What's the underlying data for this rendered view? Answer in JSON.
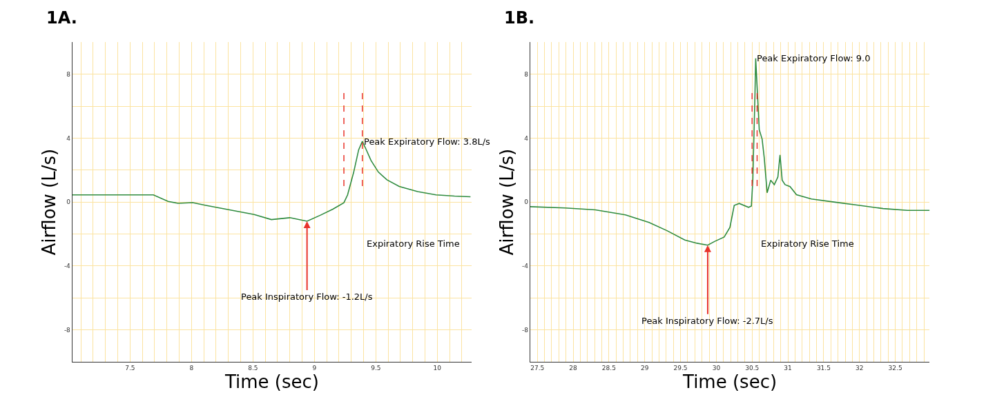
{
  "chart_data": [
    {
      "type": "line",
      "title": "1A.",
      "xlabel": "Time (sec)",
      "ylabel": "Airflow (L/s)",
      "grid": true,
      "line_style": "solid",
      "marker": "none",
      "x": [
        7.03,
        7.69,
        7.81,
        7.89,
        8.01,
        8.11,
        8.31,
        8.51,
        8.65,
        8.8,
        8.94,
        9.05,
        9.15,
        9.24,
        9.27,
        9.32,
        9.36,
        9.39,
        9.42,
        9.46,
        9.52,
        9.59,
        9.69,
        9.84,
        9.99,
        10.14,
        10.27
      ],
      "series": [
        {
          "color": "#2e8b3e",
          "values": [
            0.45,
            0.45,
            0.04,
            -0.08,
            -0.04,
            -0.2,
            -0.49,
            -0.78,
            -1.1,
            -0.98,
            -1.2,
            -0.82,
            -0.45,
            -0.04,
            0.45,
            1.88,
            3.27,
            3.8,
            3.31,
            2.61,
            1.88,
            1.39,
            0.98,
            0.65,
            0.45,
            0.37,
            0.33
          ]
        }
      ],
      "xlim": [
        7.03,
        10.28
      ],
      "xticks": [
        {
          "value": 7.1,
          "label": null
        },
        {
          "value": 7.2,
          "label": null
        },
        {
          "value": 7.3,
          "label": null
        },
        {
          "value": 7.4,
          "label": null
        },
        7.5,
        {
          "value": 7.6,
          "label": null
        },
        {
          "value": 7.7,
          "label": null
        },
        {
          "value": 7.8,
          "label": null
        },
        {
          "value": 7.9,
          "label": null
        },
        8,
        {
          "value": 8.1,
          "label": null
        },
        {
          "value": 8.2,
          "label": null
        },
        {
          "value": 8.3,
          "label": null
        },
        {
          "value": 8.4,
          "label": null
        },
        8.5,
        {
          "value": 8.6,
          "label": null
        },
        {
          "value": 8.7,
          "label": null
        },
        {
          "value": 8.8,
          "label": null
        },
        {
          "value": 8.9,
          "label": null
        },
        9,
        {
          "value": 9.1,
          "label": null
        },
        {
          "value": 9.2,
          "label": null
        },
        {
          "value": 9.3,
          "label": null
        },
        {
          "value": 9.4,
          "label": null
        },
        9.5,
        {
          "value": 9.6,
          "label": null
        },
        {
          "value": 9.7,
          "label": null
        },
        {
          "value": 9.8,
          "label": null
        },
        {
          "value": 9.9,
          "label": null
        },
        10,
        {
          "value": 10.1,
          "label": null
        },
        {
          "value": 10.2,
          "label": null
        }
      ],
      "ylim": [
        -10,
        10
      ],
      "yticks": [
        -8,
        {
          "value": -6,
          "label": null
        },
        -4,
        {
          "value": -2,
          "label": null
        },
        0,
        {
          "value": 2,
          "label": null
        },
        4,
        {
          "value": 6,
          "label": null
        },
        8
      ],
      "ref_lines": [
        {
          "axis": "x",
          "value": 9.24,
          "color": "#e8332a",
          "line_style": "dashed"
        },
        {
          "axis": "x",
          "value": 9.39,
          "color": "#e8332a",
          "line_style": "dashed"
        }
      ],
      "annotations": [
        {
          "text": "Peak Expiratory Flow: 3.8L/s",
          "x": 9.39,
          "y": 3.8
        },
        {
          "text": "Peak Inspiratory Flow: -1.2L/s",
          "x": 8.94,
          "y": -1.2
        },
        "Expiratory Rise Time"
      ]
    },
    {
      "type": "line",
      "title": "1B.",
      "xlabel": "Time (sec)",
      "ylabel": "Airflow (L/s)",
      "grid": true,
      "line_style": "solid",
      "marker": "none",
      "x": [
        27.4,
        27.89,
        28.31,
        28.73,
        29.06,
        29.31,
        29.56,
        29.73,
        29.88,
        29.98,
        30.11,
        30.19,
        30.25,
        30.32,
        30.45,
        30.49,
        30.51,
        30.54,
        30.55,
        30.58,
        30.6,
        30.64,
        30.67,
        30.71,
        30.76,
        30.81,
        30.86,
        30.89,
        30.92,
        30.96,
        31.03,
        31.12,
        31.33,
        31.66,
        32.0,
        32.33,
        32.67,
        32.98
      ],
      "series": [
        {
          "color": "#2e8b3e",
          "values": [
            -0.29,
            -0.37,
            -0.49,
            -0.8,
            -1.28,
            -1.79,
            -2.38,
            -2.58,
            -2.7,
            -2.46,
            -2.19,
            -1.59,
            -0.21,
            -0.09,
            -0.33,
            -0.25,
            1.37,
            6.71,
            9.0,
            6.31,
            4.53,
            3.94,
            2.75,
            0.58,
            1.37,
            1.09,
            1.57,
            2.95,
            1.37,
            1.09,
            0.97,
            0.46,
            0.19,
            -0.01,
            -0.21,
            -0.41,
            -0.52,
            -0.52
          ]
        }
      ],
      "xlim": [
        27.4,
        32.98
      ],
      "xticks": [
        27.5,
        {
          "value": 27.6,
          "label": null
        },
        {
          "value": 27.7,
          "label": null
        },
        {
          "value": 27.8,
          "label": null
        },
        {
          "value": 27.9,
          "label": null
        },
        28,
        {
          "value": 28.1,
          "label": null
        },
        {
          "value": 28.2,
          "label": null
        },
        {
          "value": 28.3,
          "label": null
        },
        {
          "value": 28.4,
          "label": null
        },
        28.5,
        {
          "value": 28.6,
          "label": null
        },
        {
          "value": 28.7,
          "label": null
        },
        {
          "value": 28.8,
          "label": null
        },
        {
          "value": 28.9,
          "label": null
        },
        29,
        {
          "value": 29.1,
          "label": null
        },
        {
          "value": 29.2,
          "label": null
        },
        {
          "value": 29.3,
          "label": null
        },
        {
          "value": 29.4,
          "label": null
        },
        29.5,
        {
          "value": 29.6,
          "label": null
        },
        {
          "value": 29.7,
          "label": null
        },
        {
          "value": 29.8,
          "label": null
        },
        {
          "value": 29.9,
          "label": null
        },
        30,
        {
          "value": 30.1,
          "label": null
        },
        {
          "value": 30.2,
          "label": null
        },
        {
          "value": 30.3,
          "label": null
        },
        {
          "value": 30.4,
          "label": null
        },
        30.5,
        {
          "value": 30.6,
          "label": null
        },
        {
          "value": 30.7,
          "label": null
        },
        {
          "value": 30.8,
          "label": null
        },
        {
          "value": 30.9,
          "label": null
        },
        31,
        {
          "value": 31.1,
          "label": null
        },
        {
          "value": 31.2,
          "label": null
        },
        {
          "value": 31.3,
          "label": null
        },
        {
          "value": 31.4,
          "label": null
        },
        31.5,
        {
          "value": 31.6,
          "label": null
        },
        {
          "value": 31.7,
          "label": null
        },
        {
          "value": 31.8,
          "label": null
        },
        {
          "value": 31.9,
          "label": null
        },
        32,
        {
          "value": 32.1,
          "label": null
        },
        {
          "value": 32.2,
          "label": null
        },
        {
          "value": 32.3,
          "label": null
        },
        {
          "value": 32.4,
          "label": null
        },
        32.5,
        {
          "value": 32.6,
          "label": null
        },
        {
          "value": 32.7,
          "label": null
        },
        {
          "value": 32.8,
          "label": null
        },
        {
          "value": 32.9,
          "label": null
        }
      ],
      "ylim": [
        -10,
        10
      ],
      "yticks": [
        -8,
        {
          "value": -6,
          "label": null
        },
        -4,
        {
          "value": -2,
          "label": null
        },
        0,
        {
          "value": 2,
          "label": null
        },
        4,
        {
          "value": 6,
          "label": null
        },
        8
      ],
      "ref_lines": [
        {
          "axis": "x",
          "value": 30.5,
          "color": "#e8332a",
          "line_style": "dashed"
        },
        {
          "axis": "x",
          "value": 30.57,
          "color": "#e8332a",
          "line_style": "dashed"
        }
      ],
      "annotations": [
        {
          "text": "Peak Expiratory Flow: 9.0",
          "x": 30.55,
          "y": 9.0
        },
        {
          "text": "Peak Inspiratory Flow: -2.7L/s",
          "x": 29.88,
          "y": -2.7
        },
        "Expiratory Rise Time"
      ]
    }
  ]
}
